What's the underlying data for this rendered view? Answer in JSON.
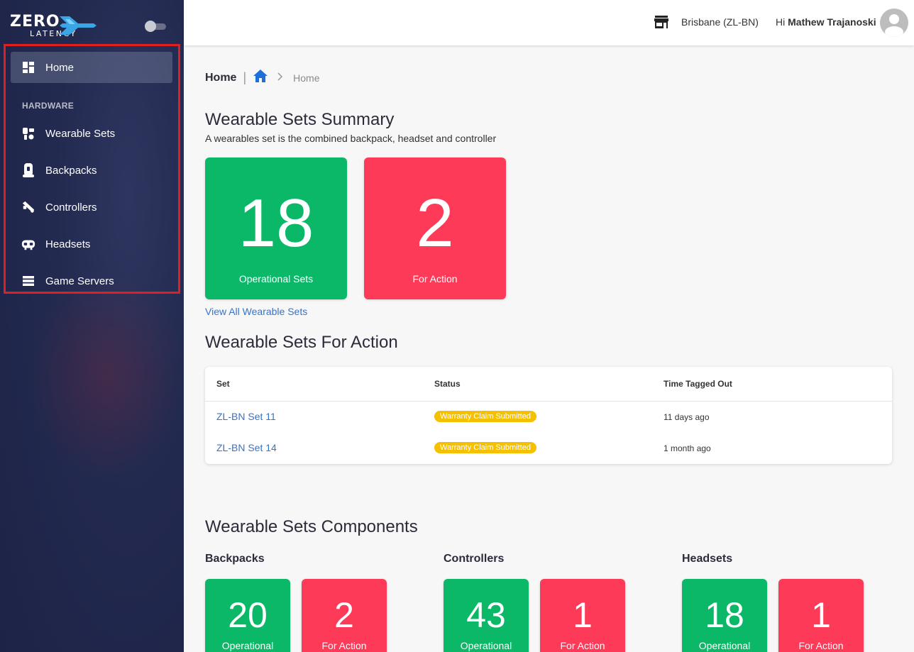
{
  "brand": {
    "line1": "ZERO",
    "line2": "LATENCY"
  },
  "sidebar": {
    "home": "Home",
    "section": "HARDWARE",
    "items": [
      {
        "label": "Wearable Sets",
        "icon": "wearable-sets-icon"
      },
      {
        "label": "Backpacks",
        "icon": "backpack-icon"
      },
      {
        "label": "Controllers",
        "icon": "controller-icon"
      },
      {
        "label": "Headsets",
        "icon": "headset-icon"
      },
      {
        "label": "Game Servers",
        "icon": "server-icon"
      }
    ]
  },
  "header": {
    "location": "Brisbane (ZL-BN)",
    "greeting_prefix": "Hi ",
    "user_name": "Mathew Trajanoski"
  },
  "breadcrumb": {
    "title": "Home",
    "current": "Home"
  },
  "summary": {
    "title": "Wearable Sets Summary",
    "subtitle": "A wearables set is the combined backpack, headset and controller",
    "operational_value": "18",
    "operational_label": "Operational Sets",
    "action_value": "2",
    "action_label": "For Action",
    "view_all": "View All Wearable Sets"
  },
  "for_action": {
    "title": "Wearable Sets For Action",
    "columns": [
      "Set",
      "Status",
      "Time Tagged Out"
    ],
    "rows": [
      {
        "set": "ZL-BN Set 11",
        "status": "Warranty Claim Submitted",
        "time": "11 days ago"
      },
      {
        "set": "ZL-BN Set 14",
        "status": "Warranty Claim Submitted",
        "time": "1 month ago"
      }
    ]
  },
  "components": {
    "title": "Wearable Sets Components",
    "groups": [
      {
        "name": "Backpacks",
        "operational": "20",
        "operational_label": "Operational",
        "action": "2",
        "action_label": "For Action"
      },
      {
        "name": "Controllers",
        "operational": "43",
        "operational_label": "Operational",
        "action": "1",
        "action_label": "For Action"
      },
      {
        "name": "Headsets",
        "operational": "18",
        "operational_label": "Operational",
        "action": "1",
        "action_label": "For Action"
      }
    ]
  },
  "colors": {
    "sidebar_bg": "#232a50",
    "operational": "#0bb868",
    "for_action": "#fe3a59",
    "link": "#3574c8",
    "badge": "#f5c000",
    "highlight_border": "#e0201e"
  }
}
